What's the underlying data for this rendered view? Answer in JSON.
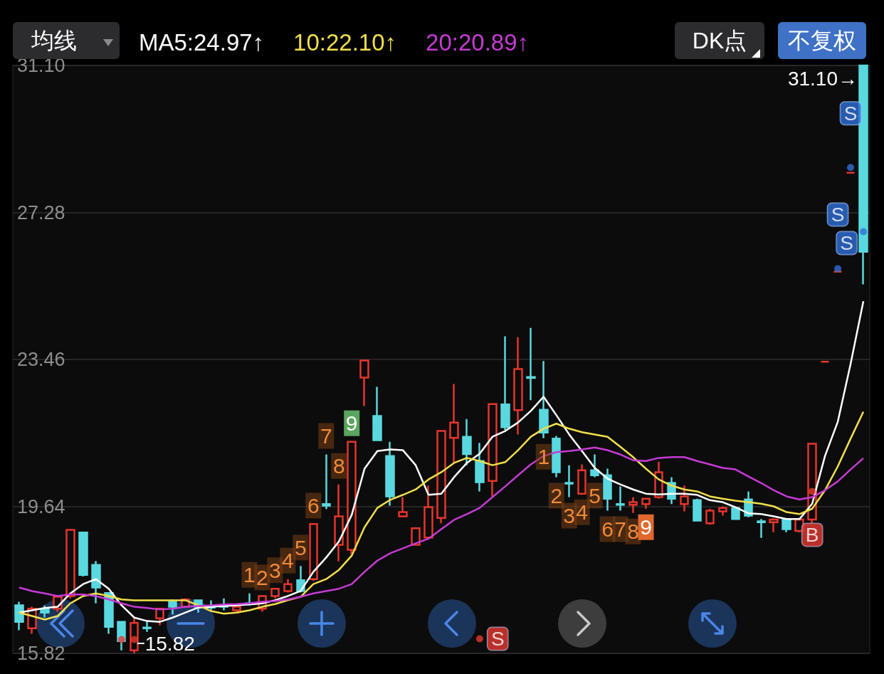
{
  "chart_data": {
    "type": "candlestick",
    "categories": [
      null,
      null,
      null,
      null,
      null,
      null,
      null,
      null,
      null,
      null,
      null,
      null,
      null,
      null,
      null,
      null,
      null,
      null,
      null,
      null,
      null,
      null,
      null,
      null,
      null,
      null,
      null,
      null,
      null,
      null,
      null,
      null,
      null,
      null,
      null,
      null,
      null,
      null,
      null,
      null,
      null,
      null,
      null,
      null,
      null,
      null,
      null,
      null,
      null,
      null,
      null,
      null,
      null,
      null,
      null,
      null,
      null,
      null,
      null,
      null,
      null,
      null,
      null,
      null,
      null,
      null,
      null
    ],
    "ohlc": [
      [
        17.07,
        17.16,
        16.42,
        16.64
      ],
      [
        16.47,
        17.03,
        16.33,
        16.98
      ],
      [
        16.96,
        17.07,
        16.75,
        16.88
      ],
      [
        16.98,
        17.33,
        16.9,
        17.29
      ],
      [
        17.31,
        19.03,
        17.25,
        19.03
      ],
      [
        18.96,
        18.96,
        17.82,
        17.86
      ],
      [
        18.12,
        18.22,
        17.12,
        17.53
      ],
      [
        17.39,
        17.39,
        16.33,
        16.51
      ],
      [
        16.64,
        16.64,
        15.9,
        16.14
      ],
      [
        15.9,
        16.75,
        15.82,
        16.61
      ],
      [
        16.49,
        16.66,
        16.38,
        16.47
      ],
      [
        16.73,
        17.0,
        16.55,
        16.98
      ],
      [
        17.16,
        17.22,
        16.83,
        17.03
      ],
      [
        17.03,
        17.22,
        17.0,
        17.22
      ],
      [
        17.2,
        17.22,
        16.88,
        17.03
      ],
      [
        17.03,
        17.2,
        16.94,
        17.01
      ],
      [
        17.05,
        17.25,
        16.94,
        17.03
      ],
      [
        16.94,
        17.05,
        16.9,
        17.03
      ],
      [
        17.12,
        17.38,
        17.07,
        17.1
      ],
      [
        16.98,
        17.31,
        16.9,
        17.31
      ],
      [
        17.31,
        17.5,
        17.25,
        17.5
      ],
      [
        17.44,
        17.75,
        17.4,
        17.62
      ],
      [
        17.72,
        18.09,
        17.4,
        17.44
      ],
      [
        17.75,
        19.18,
        17.7,
        19.18
      ],
      [
        19.7,
        20.99,
        19.57,
        19.66
      ],
      [
        18.64,
        20.21,
        18.21,
        19.38
      ],
      [
        18.51,
        21.32,
        18.4,
        21.32
      ],
      [
        22.99,
        23.43,
        22.25,
        23.43
      ],
      [
        21.99,
        22.75,
        21.36,
        21.36
      ],
      [
        20.95,
        21.32,
        19.66,
        19.9
      ],
      [
        19.38,
        19.88,
        19.38,
        19.49
      ],
      [
        18.64,
        19.1,
        18.62,
        19.07
      ],
      [
        18.83,
        20.18,
        18.8,
        19.62
      ],
      [
        19.34,
        21.6,
        19.2,
        21.6
      ],
      [
        21.42,
        22.82,
        20.77,
        21.82
      ],
      [
        21.45,
        21.91,
        20.71,
        21.0
      ],
      [
        20.82,
        21.29,
        20.03,
        20.27
      ],
      [
        20.3,
        22.3,
        19.9,
        22.3
      ],
      [
        22.29,
        24.06,
        21.63,
        21.7
      ],
      [
        22.14,
        24.04,
        21.51,
        23.21
      ],
      [
        23.0,
        24.28,
        22.4,
        22.98
      ],
      [
        22.15,
        23.42,
        21.41,
        21.56
      ],
      [
        21.4,
        21.47,
        20.4,
        20.53
      ],
      [
        20.25,
        20.71,
        19.88,
        20.23
      ],
      [
        19.97,
        20.73,
        19.97,
        20.58
      ],
      [
        20.58,
        20.99,
        20.4,
        20.45
      ],
      [
        20.45,
        20.62,
        19.53,
        19.84
      ],
      [
        19.7,
        20.16,
        19.53,
        19.68
      ],
      [
        19.68,
        19.88,
        19.47,
        19.75
      ],
      [
        19.7,
        19.84,
        19.58,
        19.84
      ],
      [
        19.88,
        20.8,
        19.84,
        20.53
      ],
      [
        20.25,
        20.4,
        19.7,
        19.84
      ],
      [
        19.7,
        20.18,
        19.51,
        19.9
      ],
      [
        19.8,
        19.84,
        19.27,
        19.27
      ],
      [
        19.2,
        19.58,
        19.17,
        19.53
      ],
      [
        19.51,
        19.64,
        19.4,
        19.6
      ],
      [
        19.6,
        19.62,
        19.3,
        19.31
      ],
      [
        19.82,
        20.03,
        19.36,
        19.4
      ],
      [
        19.25,
        19.31,
        18.82,
        19.23
      ],
      [
        19.23,
        19.33,
        18.97,
        19.3
      ],
      [
        19.3,
        19.33,
        18.97,
        19.05
      ],
      [
        19.0,
        19.33,
        18.97,
        19.3
      ],
      [
        19.3,
        21.27,
        19.2,
        21.27
      ],
      [
        23.4,
        23.4,
        23.4,
        23.4
      ],
      [
        25.74,
        25.74,
        25.74,
        25.74
      ],
      [
        28.31,
        28.31,
        28.31,
        28.31
      ],
      [
        31.1,
        31.1,
        25.41,
        26.26
      ]
    ],
    "value_labels": [
      null,
      null,
      null,
      null,
      null,
      null,
      null,
      null,
      null,
      null,
      null,
      null,
      null,
      null,
      null,
      null,
      null,
      null,
      "1",
      "2",
      "3",
      "4",
      "5",
      "6",
      "7",
      "8",
      "9",
      null,
      null,
      null,
      null,
      null,
      null,
      null,
      null,
      null,
      null,
      null,
      null,
      null,
      null,
      "1",
      "2",
      "3",
      "4",
      "5",
      "6",
      "7",
      "8",
      "9",
      null,
      null,
      null,
      null,
      null,
      null,
      null,
      null,
      null,
      null,
      null,
      null,
      null,
      null,
      null,
      null,
      null
    ],
    "series": [
      {
        "name": "MA5:24.97↑",
        "type": "line",
        "color": "#ffffff",
        "values": [
          16.88,
          16.94,
          17.0,
          17.03,
          17.38,
          17.62,
          17.75,
          17.5,
          17.07,
          16.75,
          16.66,
          16.64,
          16.75,
          16.88,
          17.01,
          17.03,
          17.05,
          17.07,
          17.09,
          17.12,
          17.2,
          17.31,
          17.44,
          17.94,
          18.31,
          18.73,
          19.42,
          20.62,
          21.08,
          21.12,
          21.1,
          20.71,
          19.94,
          19.97,
          20.4,
          20.77,
          21.01,
          21.45,
          21.6,
          21.82,
          22.12,
          22.49,
          22.01,
          21.51,
          21.08,
          20.64,
          20.36,
          20.21,
          20.08,
          19.97,
          19.95,
          19.97,
          19.97,
          19.94,
          19.8,
          19.75,
          19.62,
          19.46,
          19.44,
          19.38,
          19.31,
          19.31,
          19.71,
          20.95,
          21.84,
          23.34,
          24.97
        ]
      },
      {
        "name": "10:22.10↑",
        "type": "line",
        "color": "#f2df4b",
        "values": [
          16.88,
          16.79,
          16.7,
          16.79,
          17.12,
          17.31,
          17.38,
          17.31,
          17.22,
          17.2,
          17.2,
          17.2,
          17.2,
          17.2,
          17.07,
          16.92,
          16.85,
          16.88,
          16.94,
          17.03,
          17.1,
          17.2,
          17.29,
          17.62,
          17.75,
          17.99,
          18.36,
          19.1,
          19.6,
          19.81,
          19.94,
          20.08,
          20.34,
          20.53,
          20.77,
          20.9,
          20.82,
          20.71,
          20.79,
          21.1,
          21.45,
          21.66,
          21.79,
          21.66,
          21.57,
          21.51,
          21.45,
          21.19,
          20.92,
          20.62,
          20.34,
          20.18,
          20.08,
          20.03,
          19.9,
          19.84,
          19.79,
          19.75,
          19.71,
          19.64,
          19.49,
          19.44,
          19.58,
          20.06,
          20.68,
          21.4,
          22.1
        ]
      },
      {
        "name": "20:20.89↑",
        "type": "line",
        "color": "#c63bd4",
        "values": [
          17.53,
          17.44,
          17.38,
          17.31,
          17.35,
          17.35,
          17.31,
          17.22,
          17.12,
          17.03,
          17.0,
          16.96,
          16.98,
          17.03,
          17.05,
          17.07,
          17.09,
          17.1,
          17.12,
          17.16,
          17.18,
          17.22,
          17.29,
          17.38,
          17.44,
          17.5,
          17.62,
          17.94,
          18.23,
          18.42,
          18.55,
          18.68,
          18.8,
          19.05,
          19.29,
          19.44,
          19.6,
          19.88,
          20.16,
          20.45,
          20.73,
          20.95,
          21.05,
          21.08,
          21.12,
          21.17,
          21.1,
          20.99,
          20.84,
          20.82,
          20.9,
          20.92,
          20.92,
          20.82,
          20.73,
          20.64,
          20.6,
          20.42,
          20.25,
          20.06,
          19.9,
          19.82,
          19.88,
          20.06,
          20.29,
          20.6,
          20.89
        ]
      },
      {
        "type": "scatter",
        "marker": "circle",
        "values": [
          null,
          null,
          null,
          null,
          null,
          null,
          null,
          null,
          16.18,
          16.18,
          null,
          null,
          null,
          null,
          null,
          null,
          null,
          null,
          null,
          null,
          null,
          null,
          null,
          null,
          null,
          null,
          null,
          null,
          null,
          null,
          null,
          null,
          null,
          null,
          null,
          null,
          16.2,
          null,
          null,
          null,
          null,
          null,
          null,
          null,
          null,
          null,
          null,
          null,
          null,
          null,
          null,
          null,
          null,
          null,
          null,
          null,
          null,
          null,
          null,
          null,
          null,
          null,
          20.03,
          null,
          25.82,
          28.45,
          26.78
        ],
        "colors": [
          null,
          null,
          null,
          null,
          null,
          null,
          null,
          null,
          "#e53a33",
          "#e53a33",
          null,
          null,
          null,
          null,
          null,
          null,
          null,
          null,
          null,
          null,
          null,
          null,
          null,
          null,
          null,
          null,
          null,
          null,
          null,
          null,
          null,
          null,
          null,
          null,
          null,
          null,
          "#e53a33",
          null,
          null,
          null,
          null,
          null,
          null,
          null,
          null,
          null,
          null,
          null,
          null,
          null,
          null,
          null,
          null,
          null,
          null,
          null,
          null,
          null,
          null,
          null,
          null,
          null,
          "#e53a33",
          null,
          "#2f6fd8",
          "#2f6fd8",
          "#2f6fd8"
        ],
        "value_labels": [
          null,
          null,
          null,
          null,
          null,
          null,
          null,
          null,
          null,
          null,
          null,
          null,
          null,
          null,
          null,
          null,
          null,
          null,
          null,
          null,
          null,
          null,
          null,
          null,
          null,
          null,
          null,
          null,
          null,
          null,
          null,
          null,
          null,
          null,
          null,
          null,
          "S",
          null,
          null,
          null,
          null,
          null,
          null,
          null,
          null,
          null,
          null,
          null,
          null,
          null,
          null,
          null,
          null,
          null,
          null,
          null,
          null,
          null,
          null,
          null,
          null,
          null,
          "B",
          null,
          "S",
          "S",
          "S"
        ]
      }
    ],
    "ylim": [
      15.82,
      31.1
    ],
    "yticks": [
      15.82,
      19.64,
      23.46,
      27.28,
      {
        "value": 31.1,
        "label": "31.10"
      }
    ],
    "tick_labels": "y",
    "grid": "y",
    "legend": "top left",
    "marker": "none",
    "annotations": [
      "均线",
      "DK点",
      "不复权",
      "31.10→",
      "15.82"
    ]
  }
}
